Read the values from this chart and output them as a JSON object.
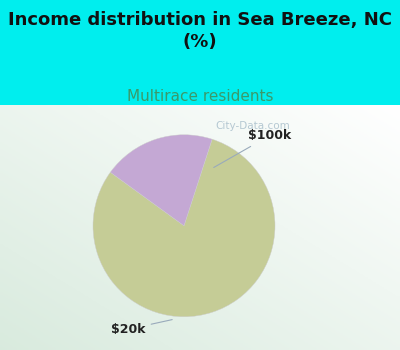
{
  "title": "Income distribution in Sea Breeze, NC\n(%)",
  "subtitle": "Multirace residents",
  "title_fontsize": 13,
  "subtitle_fontsize": 11,
  "title_color": "#111111",
  "subtitle_color": "#3a9a6a",
  "bg_color": "#00eeee",
  "slices": [
    {
      "label": "$20k",
      "value": 80,
      "color": "#c5cc96"
    },
    {
      "label": "$100k",
      "value": 20,
      "color": "#c4a8d4"
    }
  ],
  "label_fontsize": 9,
  "watermark": "City-Data.com",
  "startangle": 72
}
